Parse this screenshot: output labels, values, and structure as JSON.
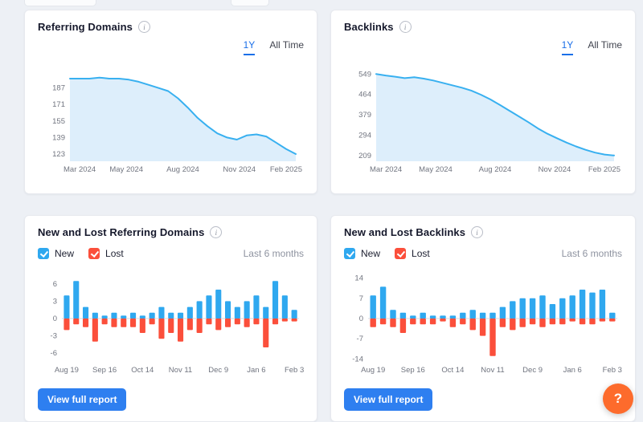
{
  "icons": {
    "info_glyph": "i",
    "help_glyph": "?"
  },
  "colors": {
    "background": "#edf0f5",
    "card_background": "#ffffff",
    "tab_active_blue": "#1a6fe8",
    "line_blue": "#38b0f0",
    "area_fill": "#ddeefb",
    "new_bar_blue": "#2fa8ef",
    "lost_bar_red": "#fb4f3b",
    "button_blue": "#2e7ff0",
    "help_orange": "#fd6b2c"
  },
  "cards": [
    {
      "title": "Referring Domains",
      "tabs": [
        {
          "label": "1Y",
          "active": true
        },
        {
          "label": "All Time",
          "active": false
        }
      ]
    },
    {
      "title": "Backlinks",
      "tabs": [
        {
          "label": "1Y",
          "active": true
        },
        {
          "label": "All Time",
          "active": false
        }
      ]
    },
    {
      "title": "New and Lost Referring Domains",
      "legend": [
        {
          "label": "New",
          "checked": true
        },
        {
          "label": "Lost",
          "checked": true
        }
      ],
      "range_label": "Last 6 months",
      "button_label": "View full report"
    },
    {
      "title": "New and Lost Backlinks",
      "legend": [
        {
          "label": "New",
          "checked": true
        },
        {
          "label": "Lost",
          "checked": true
        }
      ],
      "range_label": "Last 6 months",
      "button_label": "View full report"
    }
  ],
  "help_button": {
    "label": "?"
  },
  "chart_data": [
    {
      "type": "area",
      "title": "Referring Domains",
      "x_labels": [
        "Mar 2024",
        "May 2024",
        "Aug 2024",
        "Nov 2024",
        "Feb 2025"
      ],
      "values": [
        196,
        196,
        196,
        197,
        196,
        196,
        195,
        193,
        190,
        187,
        184,
        177,
        168,
        158,
        150,
        143,
        139,
        137,
        141,
        142,
        140,
        134,
        128,
        123
      ],
      "yticks": [
        187,
        171,
        155,
        139,
        123
      ],
      "ylim": [
        116,
        203
      ],
      "line_color": "#38b0f0",
      "fill_color": "#ddeefb",
      "grid": false,
      "legend_position": "none"
    },
    {
      "type": "area",
      "title": "Backlinks",
      "x_labels": [
        "Mar 2024",
        "May 2024",
        "Aug 2024",
        "Nov 2024",
        "Feb 2025"
      ],
      "values": [
        549,
        543,
        538,
        532,
        536,
        530,
        522,
        512,
        502,
        492,
        480,
        463,
        443,
        420,
        396,
        372,
        348,
        322,
        300,
        281,
        263,
        247,
        233,
        221,
        213,
        209
      ],
      "yticks": [
        549,
        464,
        379,
        294,
        209
      ],
      "ylim": [
        185,
        560
      ],
      "line_color": "#38b0f0",
      "fill_color": "#ddeefb",
      "grid": false,
      "legend_position": "none"
    },
    {
      "type": "bar",
      "title": "New and Lost Referring Domains",
      "x_labels": [
        "Aug 19",
        "Sep 16",
        "Oct 14",
        "Nov 11",
        "Dec 9",
        "Jan 6",
        "Feb 3"
      ],
      "x_label_idx": [
        0,
        4,
        8,
        12,
        16,
        20,
        24
      ],
      "series": [
        {
          "name": "New",
          "color": "#2fa8ef",
          "values": [
            4,
            6.5,
            2,
            1,
            0.5,
            1,
            0.5,
            1,
            0.5,
            1,
            2,
            1,
            1,
            2,
            3,
            4,
            5,
            3,
            2,
            3,
            4,
            2,
            6.5,
            4,
            1.5
          ]
        },
        {
          "name": "Lost",
          "color": "#fb4f3b",
          "values": [
            -2,
            -1,
            -1.5,
            -4,
            -1,
            -1.5,
            -1.5,
            -1.5,
            -2.5,
            -1,
            -3.5,
            -2.5,
            -4,
            -2,
            -2.5,
            -1,
            -2,
            -1.5,
            -1,
            -1.5,
            -1,
            -5,
            -1,
            -0.5,
            -0.5
          ]
        }
      ],
      "yticks": [
        6,
        3,
        0,
        -3,
        -6
      ],
      "ylim": [
        -7.5,
        7.5
      ],
      "grid": false,
      "legend_position": "top-left"
    },
    {
      "type": "bar",
      "title": "New and Lost Backlinks",
      "x_labels": [
        "Aug 19",
        "Sep 16",
        "Oct 14",
        "Nov 11",
        "Dec 9",
        "Jan 6",
        "Feb 3"
      ],
      "x_label_idx": [
        0,
        4,
        8,
        12,
        16,
        20,
        24
      ],
      "series": [
        {
          "name": "New",
          "color": "#2fa8ef",
          "values": [
            8,
            11,
            3,
            2,
            1,
            2,
            1,
            1,
            1,
            2,
            3,
            2,
            2,
            4,
            6,
            7,
            7,
            8,
            5,
            7,
            8,
            10,
            9,
            10,
            2
          ]
        },
        {
          "name": "Lost",
          "color": "#fb4f3b",
          "values": [
            -3,
            -2,
            -3,
            -5,
            -2,
            -2,
            -2,
            -1,
            -3,
            -2,
            -4,
            -6,
            -13,
            -3,
            -4,
            -3,
            -2,
            -3,
            -2,
            -2,
            -1,
            -2,
            -2,
            -1,
            -1
          ]
        }
      ],
      "yticks": [
        14,
        7,
        0,
        -7,
        -14
      ],
      "ylim": [
        -15,
        15
      ],
      "grid": false,
      "legend_position": "top-left"
    }
  ]
}
